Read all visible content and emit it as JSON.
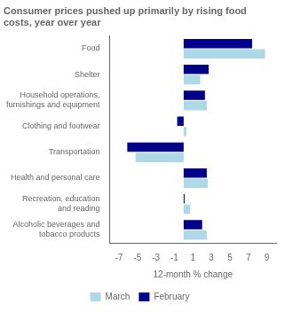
{
  "chart_data": {
    "type": "bar",
    "orientation": "horizontal",
    "title": "Consumer prices pushed up primarily by rising food\ncosts, year over year",
    "categories": [
      "Food",
      "Shelter",
      "Household operations,\nfurnishings and equipment",
      "Clothing and footwear",
      "Transportation",
      "Health and personal care",
      "Recreation, education\nand reading",
      "Alcoholic beverages and\ntobacco products"
    ],
    "series": [
      {
        "name": "March",
        "color": "#add8e6",
        "values": [
          8.8,
          1.8,
          2.5,
          0.3,
          -5.2,
          2.6,
          0.7,
          2.5
        ]
      },
      {
        "name": "February",
        "color": "#00008b",
        "values": [
          7.4,
          2.7,
          2.3,
          -0.7,
          -6.1,
          2.5,
          0.1,
          2.0
        ]
      }
    ],
    "x_label": "12-month % change",
    "xlim": [
      -8,
      10
    ],
    "xticks": [
      -7,
      -5,
      -3,
      -1,
      1,
      3,
      5,
      7,
      9
    ],
    "grid": false,
    "legend": "bottom"
  }
}
